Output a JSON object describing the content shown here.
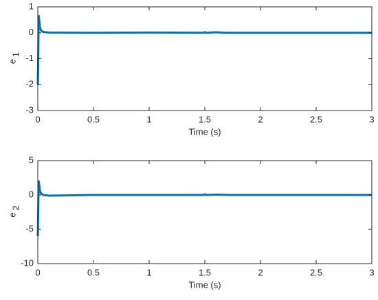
{
  "chart_data": [
    {
      "type": "line",
      "xlabel": "Time (s)",
      "ylabel": "e",
      "ylabel_subscript": "1",
      "x": [
        0,
        0.003,
        0.008,
        0.012,
        0.02,
        0.03,
        0.05,
        0.1,
        0.5,
        1.0,
        1.49,
        1.5,
        1.51,
        1.6,
        1.7,
        2.0,
        3.0
      ],
      "series": [
        {
          "color": "#0072bd",
          "values": [
            -2.0,
            -1.2,
            0.65,
            0.5,
            0.2,
            0.08,
            0.03,
            0.01,
            0,
            0.01,
            0,
            0.03,
            0,
            0.02,
            0,
            0,
            0
          ]
        }
      ],
      "xlim": [
        0,
        3
      ],
      "ylim": [
        -3,
        1
      ],
      "xticks": [
        0,
        0.5,
        1,
        1.5,
        2,
        2.5,
        3
      ],
      "yticks": [
        -3,
        -2,
        -1,
        0,
        1
      ]
    },
    {
      "type": "line",
      "xlabel": "Time (s)",
      "ylabel": "e",
      "ylabel_subscript": "2",
      "x": [
        0,
        0.003,
        0.008,
        0.012,
        0.02,
        0.03,
        0.05,
        0.1,
        0.5,
        1.0,
        1.49,
        1.5,
        1.51,
        1.6,
        1.7,
        2.0,
        3.0
      ],
      "series": [
        {
          "color": "#0072bd",
          "values": [
            -6,
            -3,
            2,
            1.5,
            0.6,
            0.2,
            0,
            -0.1,
            0,
            0,
            0,
            0.1,
            0,
            0.05,
            0,
            0,
            0
          ]
        }
      ],
      "xlim": [
        0,
        3
      ],
      "ylim": [
        -10,
        5
      ],
      "xticks": [
        0,
        0.5,
        1,
        1.5,
        2,
        2.5,
        3
      ],
      "yticks": [
        -10,
        -5,
        0,
        5
      ]
    }
  ]
}
